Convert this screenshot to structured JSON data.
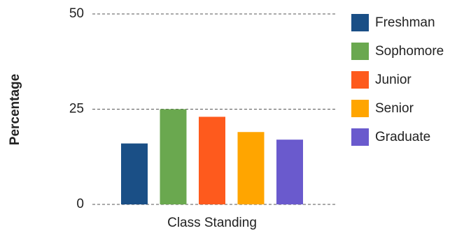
{
  "chart_data": {
    "type": "bar",
    "x_label": "Class Standing",
    "y_label": "Percentage",
    "categories": [
      null
    ],
    "series": [
      {
        "name": "Freshman",
        "color": "#1a4f86",
        "values": [
          16
        ]
      },
      {
        "name": "Sophomore",
        "color": "#6aa84f",
        "values": [
          25
        ]
      },
      {
        "name": "Junior",
        "color": "#fe5a1d",
        "values": [
          23
        ]
      },
      {
        "name": "Senior",
        "color": "#ffa500",
        "values": [
          19
        ]
      },
      {
        "name": "Graduate",
        "color": "#6a5acd",
        "values": [
          17
        ]
      }
    ],
    "ylim": [
      0,
      50
    ],
    "yticks": [
      0,
      25,
      50
    ],
    "grid": true,
    "legend": "right"
  }
}
